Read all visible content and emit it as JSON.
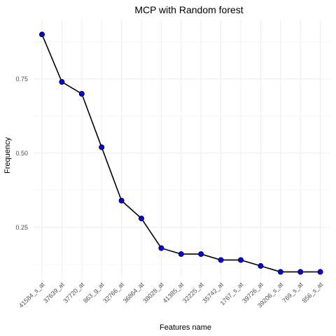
{
  "chart_data": {
    "type": "line",
    "title": "MCP with Random forest",
    "xlabel": "Features name",
    "ylabel": "Frequency",
    "categories": [
      "41584_s_at",
      "37639_at",
      "37720_at",
      "863_g_at",
      "32766_at",
      "36864_at",
      "38028_at",
      "41385_at",
      "32225_at",
      "35742_at",
      "1767_s_at",
      "39726_at",
      "39206_s_at",
      "769_s_at",
      "856_s_at"
    ],
    "series": [
      {
        "values": [
          0.9,
          0.74,
          0.7,
          0.52,
          0.34,
          0.28,
          0.18,
          0.16,
          0.16,
          0.14,
          0.14,
          0.12,
          0.1,
          0.1,
          0.1
        ]
      }
    ],
    "ylim": [
      0.075,
      0.95
    ],
    "yticks": [
      0.25,
      0.5,
      0.75
    ],
    "ytick_labels": [
      "0.25",
      "0.50",
      "0.75"
    ],
    "grid": true,
    "point_color": "#0000ee",
    "line_color": "#000000"
  }
}
